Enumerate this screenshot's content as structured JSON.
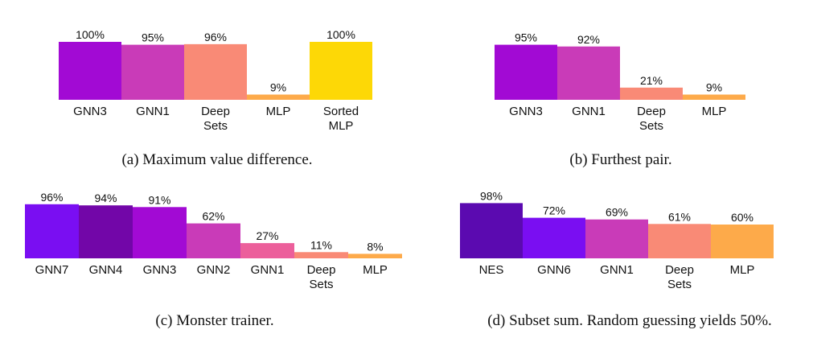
{
  "chart_data": [
    {
      "type": "bar",
      "caption": "(a) Maximum value difference.",
      "categories": [
        [
          "GNN3"
        ],
        [
          "GNN1"
        ],
        [
          "Deep",
          "Sets"
        ],
        [
          "MLP"
        ],
        [
          "Sorted",
          "MLP"
        ]
      ],
      "values": [
        100,
        95,
        96,
        9,
        100
      ],
      "labels": [
        "100%",
        "95%",
        "96%",
        "9%",
        "100%"
      ],
      "colors": [
        "#a20ad4",
        "#c93bb8",
        "#f98a76",
        "#fdaa4a",
        "#fdd806"
      ],
      "ylim": [
        0,
        100
      ]
    },
    {
      "type": "bar",
      "caption": "(b) Furthest pair.",
      "categories": [
        [
          "GNN3"
        ],
        [
          "GNN1"
        ],
        [
          "Deep",
          "Sets"
        ],
        [
          "MLP"
        ]
      ],
      "values": [
        95,
        92,
        21,
        9
      ],
      "labels": [
        "95%",
        "92%",
        "21%",
        "9%"
      ],
      "colors": [
        "#a20ad4",
        "#c93bb8",
        "#f98a76",
        "#fdaa4a"
      ],
      "ylim": [
        0,
        100
      ]
    },
    {
      "type": "bar",
      "caption": "(c) Monster trainer.",
      "categories": [
        [
          "GNN7"
        ],
        [
          "GNN4"
        ],
        [
          "GNN3"
        ],
        [
          "GNN2"
        ],
        [
          "GNN1"
        ],
        [
          "Deep",
          "Sets"
        ],
        [
          "MLP"
        ]
      ],
      "values": [
        96,
        94,
        91,
        62,
        27,
        11,
        8
      ],
      "labels": [
        "96%",
        "94%",
        "91%",
        "62%",
        "27%",
        "11%",
        "8%"
      ],
      "colors": [
        "#7a0ef2",
        "#7206a8",
        "#a20ad4",
        "#c93bb8",
        "#ec5f9b",
        "#f98a76",
        "#fdaa4a"
      ],
      "ylim": [
        0,
        100
      ]
    },
    {
      "type": "bar",
      "caption": "(d) Subset sum. Random guessing yields 50%.",
      "categories": [
        [
          "NES"
        ],
        [
          "GNN6"
        ],
        [
          "GNN1"
        ],
        [
          "Deep",
          "Sets"
        ],
        [
          "MLP"
        ]
      ],
      "values": [
        98,
        72,
        69,
        61,
        60
      ],
      "labels": [
        "98%",
        "72%",
        "69%",
        "61%",
        "60%"
      ],
      "colors": [
        "#5b0ab0",
        "#7a0ef2",
        "#c93bb8",
        "#f98a76",
        "#fdaa4a"
      ],
      "ylim": [
        0,
        100
      ]
    }
  ]
}
